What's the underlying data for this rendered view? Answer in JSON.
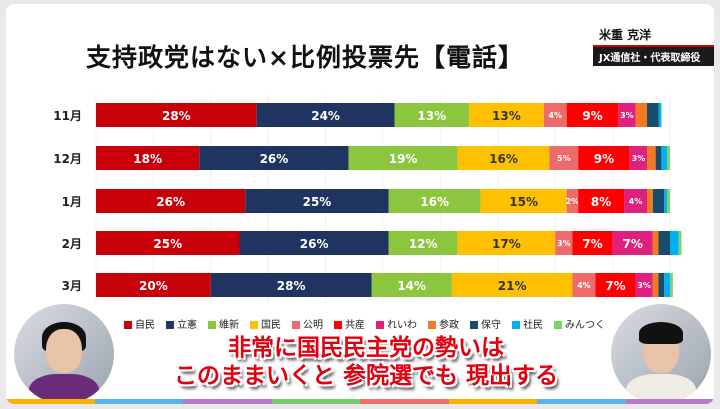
{
  "header": {
    "title": "支持政党はない×比例投票先【電話】",
    "speaker_name": "米重 克洋",
    "speaker_role": "JX通信社・代表取締役"
  },
  "caption": {
    "line1": "非常に国民民主党の勢いは",
    "line2": "このままいくと 参院選でも 現出する"
  },
  "chart_data": {
    "type": "bar",
    "orientation": "horizontal",
    "stacked": true,
    "unit": "%",
    "categories": [
      "11月",
      "12月",
      "1月",
      "2月",
      "3月"
    ],
    "legend_position": "bottom",
    "series": [
      {
        "name": "自民",
        "color": "#c8000a",
        "values": [
          28,
          18,
          26,
          25,
          20
        ],
        "labels": [
          "28%",
          "18%",
          "26%",
          "25%",
          "20%"
        ]
      },
      {
        "name": "立憲",
        "color": "#1f3461",
        "values": [
          24,
          26,
          25,
          26,
          28
        ],
        "labels": [
          "24%",
          "26%",
          "25%",
          "26%",
          "28%"
        ]
      },
      {
        "name": "維新",
        "color": "#8cc63f",
        "values": [
          13,
          19,
          16,
          12,
          14
        ],
        "labels": [
          "13%",
          "19%",
          "16%",
          "12%",
          "14%"
        ]
      },
      {
        "name": "国民",
        "color": "#ffc000",
        "values": [
          13,
          16,
          15,
          17,
          21
        ],
        "labels": [
          "13%",
          "16%",
          "15%",
          "17%",
          "21%"
        ]
      },
      {
        "name": "公明",
        "color": "#ee6b6b",
        "values": [
          4,
          5,
          2,
          3,
          4
        ],
        "labels": [
          "4%",
          "5%",
          "2%",
          "3%",
          "4%"
        ]
      },
      {
        "name": "共産",
        "color": "#ff0000",
        "values": [
          9,
          9,
          8,
          7,
          7
        ],
        "labels": [
          "9%",
          "9%",
          "8%",
          "7%",
          "7%"
        ]
      },
      {
        "name": "れいわ",
        "color": "#e0207f",
        "values": [
          3,
          3,
          4,
          7,
          3
        ],
        "labels": [
          "3%",
          "3%",
          "4%",
          "7%",
          "3%"
        ]
      },
      {
        "name": "参政",
        "color": "#f47920",
        "values": [
          2,
          1.5,
          1,
          1,
          1
        ]
      },
      {
        "name": "保守",
        "color": "#174c6b",
        "values": [
          2,
          1,
          2,
          2,
          1
        ]
      },
      {
        "name": "社民",
        "color": "#00b0f0",
        "values": [
          0.5,
          1,
          0.5,
          1.5,
          1
        ]
      },
      {
        "name": "みんつく",
        "color": "#7dd36b",
        "values": [
          0,
          0.5,
          0.5,
          0.5,
          0.5
        ]
      }
    ]
  }
}
